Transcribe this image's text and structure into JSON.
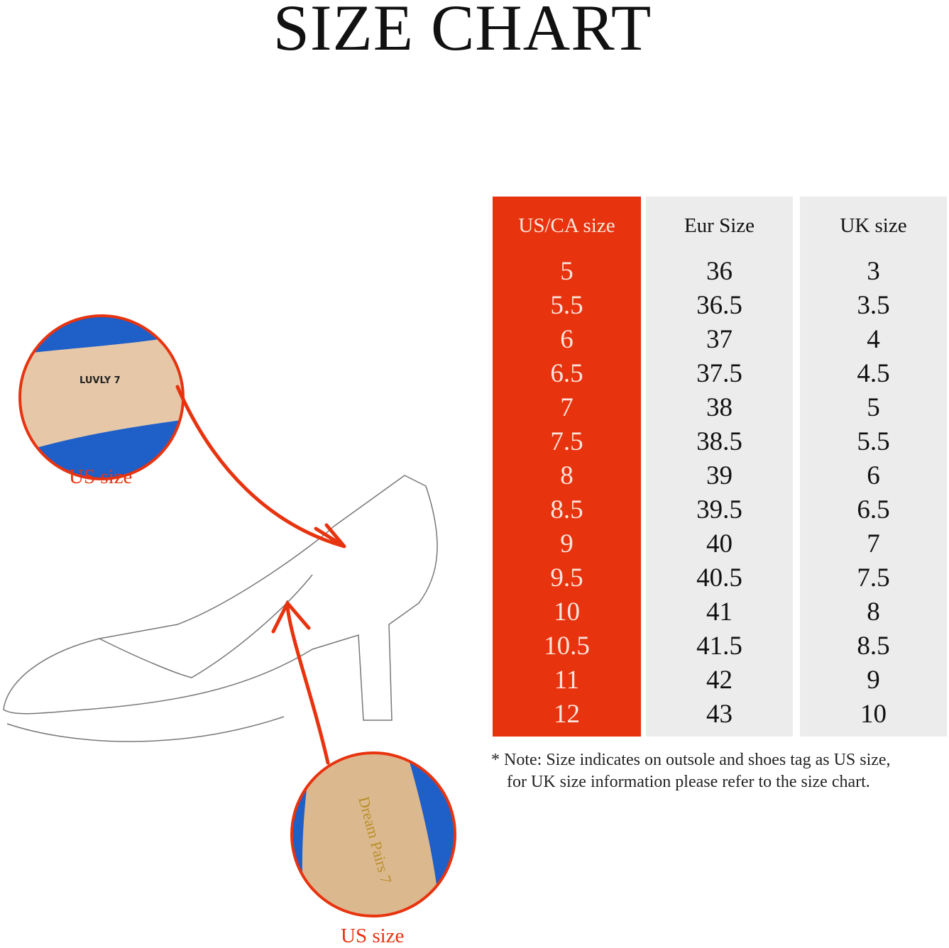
{
  "title": "SIZE CHART",
  "table": {
    "headers": [
      "US/CA size",
      "Eur Size",
      "UK size"
    ],
    "us": [
      "5",
      "5.5",
      "6",
      "6.5",
      "7",
      "7.5",
      "8",
      "8.5",
      "9",
      "9.5",
      "10",
      "10.5",
      "11",
      "12"
    ],
    "eur": [
      "36",
      "36.5",
      "37",
      "37.5",
      "38",
      "38.5",
      "39",
      "39.5",
      "40",
      "40.5",
      "41",
      "41.5",
      "42",
      "43"
    ],
    "uk": [
      "3",
      "3.5",
      "4",
      "4.5",
      "5",
      "5.5",
      "6",
      "6.5",
      "7",
      "7.5",
      "8",
      "8.5",
      "9",
      "10"
    ]
  },
  "note": {
    "line1": "* Note: Size indicates on outsole and shoes tag as US size,",
    "line2": "for UK size information please refer to the size chart."
  },
  "callouts": {
    "top_label": "US size",
    "bottom_label": "US size",
    "top_tag_text": "LUVLY 7",
    "bottom_tag_text": "Dream Pairs 7"
  },
  "colors": {
    "accent": "#e8330f",
    "column_bg": "#ececec",
    "inset_blue": "#1f5fc8",
    "inset_beige": "#e6c8a8"
  }
}
